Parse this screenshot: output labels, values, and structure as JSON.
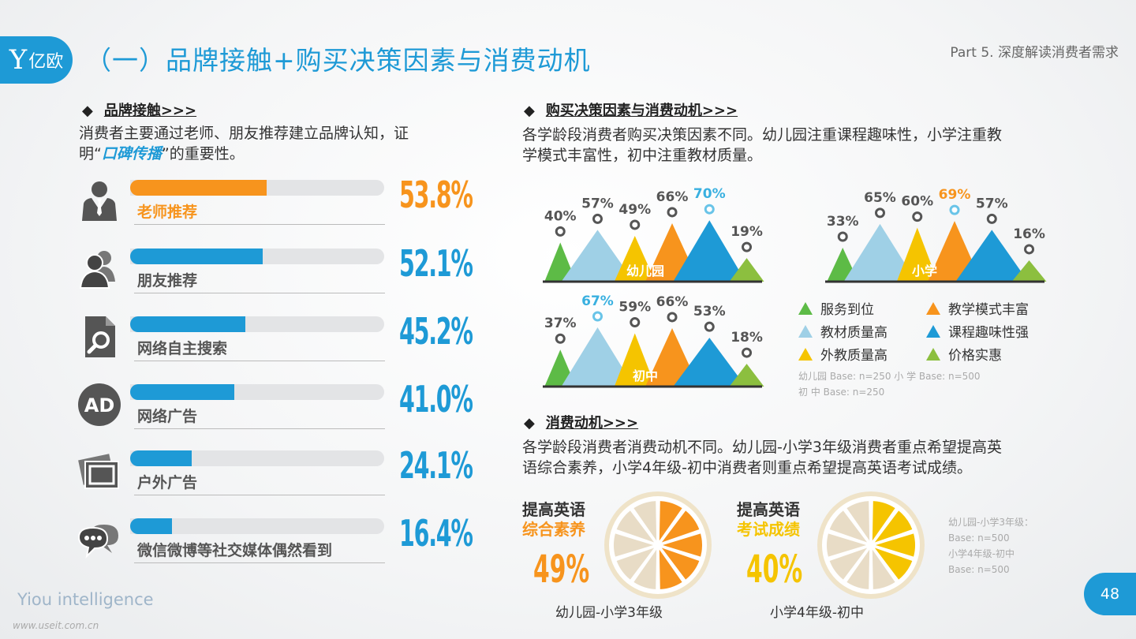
{
  "header": {
    "logo_text": "亿欧",
    "title": "（一）品牌接触+购买决策因素与消费动机",
    "part": "Part 5. 深度解读消费者需求"
  },
  "brand_contact": {
    "heading": "品牌接触>>>",
    "desc_1": "消费者主要通过老师、朋友推荐建立品牌认知，证",
    "desc_2a": "明“",
    "desc_2em": "口碑传播",
    "desc_2b": "”的重要性。",
    "rows": [
      {
        "label": "老师推荐",
        "value": "53.8%",
        "fraction": 0.538,
        "color": "#f7941d",
        "icon": "person-suit-icon"
      },
      {
        "label": "朋友推荐",
        "value": "52.1%",
        "fraction": 0.521,
        "color": "#1e9ad6",
        "icon": "people-icon"
      },
      {
        "label": "网络自主搜索",
        "value": "45.2%",
        "fraction": 0.452,
        "color": "#1e9ad6",
        "icon": "document-search-icon"
      },
      {
        "label": "网络广告",
        "value": "41.0%",
        "fraction": 0.41,
        "color": "#1e9ad6",
        "icon": "ad-icon"
      },
      {
        "label": "户外广告",
        "value": "24.1%",
        "fraction": 0.241,
        "color": "#1e9ad6",
        "icon": "billboard-icon"
      },
      {
        "label": "微信微博等社交媒体偶然看到",
        "value": "16.4%",
        "fraction": 0.164,
        "color": "#1e9ad6",
        "icon": "chat-icon"
      }
    ]
  },
  "decision": {
    "heading": "购买决策因素与消费动机>>>",
    "desc_1": "各学龄段消费者购买决策因素不同。幼儿园注重课程趣味性，小学注重教",
    "desc_2": "学模式丰富性，初中注重教材质量。",
    "charts": [
      {
        "name": "幼儿园",
        "values": [
          "40%",
          "57%",
          "49%",
          "66%",
          "70%",
          "19%"
        ]
      },
      {
        "name": "小学",
        "values": [
          "33%",
          "65%",
          "60%",
          "69%",
          "57%",
          "16%"
        ]
      },
      {
        "name": "初中",
        "values": [
          "37%",
          "67%",
          "59%",
          "66%",
          "53%",
          "18%"
        ]
      }
    ],
    "legend": [
      {
        "label": "服务到位",
        "color": "#5dbb46"
      },
      {
        "label": "教学模式丰富",
        "color": "#f7941d"
      },
      {
        "label": "教材质量高",
        "color": "#9fd0e6"
      },
      {
        "label": "课程趣味性强",
        "color": "#1e9ad6"
      },
      {
        "label": "外教质量高",
        "color": "#f5c400"
      },
      {
        "label": "价格实惠",
        "color": "#8cbf3f"
      }
    ],
    "base_1": "幼儿园 Base: n=250     小    学 Base: n=500",
    "base_2": "初    中 Base: n=250"
  },
  "motivation": {
    "heading": "消费动机>>>",
    "desc_1": "各学龄段消费者消费动机不同。幼儿园-小学3年级消费者重点希望提高英",
    "desc_2": "语综合素养，小学4年级-初中消费者则重点希望提高英语考试成绩。",
    "left": {
      "t1": "提高英语",
      "t2": "综合素养",
      "value": "49%",
      "fraction": 0.49,
      "caption": "幼儿园-小学3年级",
      "color": "#f7941d"
    },
    "right": {
      "t1": "提高英语",
      "t2": "考试成绩",
      "value": "40%",
      "fraction": 0.4,
      "caption": "小学4年级-初中",
      "color": "#f5c400"
    },
    "base_1": "幼儿园-小学3年级：",
    "base_2": "Base: n=500",
    "base_3": "小学4年级-初中",
    "base_4": "Base: n=500"
  },
  "footer": {
    "brand": "Yiou intelligence",
    "page": "48",
    "watermark": "www.useit.com.cn"
  }
}
